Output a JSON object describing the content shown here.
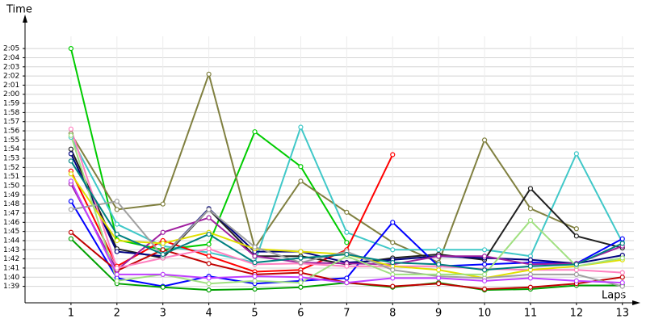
{
  "chart_data": {
    "type": "line",
    "title_y": "Time",
    "title_x": "Laps",
    "x": [
      1,
      2,
      3,
      4,
      5,
      6,
      7,
      8,
      9,
      10,
      11,
      12,
      13
    ],
    "xlim": [
      0,
      13.25
    ],
    "xticks": [
      1,
      2,
      3,
      4,
      5,
      6,
      7,
      8,
      9,
      10,
      11,
      12,
      13
    ],
    "ylim": [
      97.2,
      128.1
    ],
    "yticks": [
      {
        "value": 99,
        "label": "1:39"
      },
      {
        "value": 100,
        "label": "1:40"
      },
      {
        "value": 101,
        "label": "1:41"
      },
      {
        "value": 102,
        "label": "1:42"
      },
      {
        "value": 103,
        "label": "1:43"
      },
      {
        "value": 104,
        "label": "1:44"
      },
      {
        "value": 105,
        "label": "1:45"
      },
      {
        "value": 106,
        "label": "1:46"
      },
      {
        "value": 107,
        "label": "1:47"
      },
      {
        "value": 108,
        "label": "1:48"
      },
      {
        "value": 109,
        "label": "1:49"
      },
      {
        "value": 110,
        "label": "1:50"
      },
      {
        "value": 111,
        "label": "1:51"
      },
      {
        "value": 112,
        "label": "1:52"
      },
      {
        "value": 113,
        "label": "1:53"
      },
      {
        "value": 114,
        "label": "1:54"
      },
      {
        "value": 115,
        "label": "1:55"
      },
      {
        "value": 116,
        "label": "1:56"
      },
      {
        "value": 117,
        "label": "1:57"
      },
      {
        "value": 118,
        "label": "1:58"
      },
      {
        "value": 119,
        "label": "1:59"
      },
      {
        "value": 120,
        "label": "2:00"
      },
      {
        "value": 121,
        "label": "2:01"
      },
      {
        "value": 122,
        "label": "2:02"
      },
      {
        "value": 123,
        "label": "2:03"
      },
      {
        "value": 124,
        "label": "2:04"
      },
      {
        "value": 125,
        "label": "2:05"
      }
    ],
    "grid": true,
    "series": [
      {
        "color": "#00cc00",
        "values": [
          125,
          104.1,
          103,
          103.6,
          115.9,
          112.1,
          103.8,
          null,
          null,
          null,
          null,
          null,
          null
        ]
      },
      {
        "color": "#808040",
        "values": [
          115.7,
          107.4,
          108,
          122.2,
          103.2,
          110.5,
          107.1,
          103.8,
          101.6,
          115,
          107.5,
          105.3,
          null
        ]
      },
      {
        "color": "#40c8c8",
        "values": [
          115.3,
          105.8,
          103.4,
          102.7,
          101.6,
          116.4,
          104.9,
          103,
          103,
          103,
          102.3,
          113.5,
          103.8
        ]
      },
      {
        "color": "#ff0000",
        "values": [
          111.6,
          101.2,
          104,
          102.3,
          100.6,
          100.8,
          103,
          113.4,
          null,
          null,
          null,
          null,
          null
        ]
      },
      {
        "color": "#202020",
        "values": [
          114,
          103.1,
          102.1,
          107.4,
          102.3,
          102.3,
          101.4,
          102.1,
          102.5,
          101.9,
          109.7,
          104.5,
          103.2
        ]
      },
      {
        "color": "#0000ff",
        "values": [
          108.3,
          99.9,
          99,
          100.1,
          99.3,
          99.6,
          99.9,
          106,
          101.2,
          101.4,
          101.6,
          101.5,
          104.2
        ]
      },
      {
        "color": "#000080",
        "values": [
          113.5,
          102.8,
          102.3,
          107.5,
          102.8,
          102.8,
          101.6,
          101.9,
          102.3,
          102.1,
          101.9,
          101.5,
          102.4
        ]
      },
      {
        "color": "#00a000",
        "values": [
          104.2,
          99.3,
          98.9,
          98.6,
          98.7,
          98.9,
          99.4,
          98.9,
          99.4,
          98.6,
          98.7,
          99.1,
          99.1
        ]
      },
      {
        "color": "#c00000",
        "values": [
          104.9,
          100.7,
          103,
          101.5,
          100.3,
          100.5,
          99.4,
          99,
          99.3,
          98.7,
          98.9,
          99.3,
          100
        ]
      },
      {
        "color": "#a020a0",
        "values": [
          110.2,
          100.8,
          104.9,
          106.5,
          102.3,
          101.6,
          101.5,
          101.4,
          102.3,
          102.3,
          101.4,
          101.5,
          103.4
        ]
      },
      {
        "color": "#ff80c0",
        "values": [
          116.2,
          101,
          102.1,
          103.1,
          101.4,
          101.5,
          101.2,
          101.2,
          101.2,
          100.9,
          100.8,
          100.8,
          100.5
        ]
      },
      {
        "color": "#e0e000",
        "values": [
          111.3,
          104,
          103.7,
          104.9,
          103.1,
          102.8,
          102.5,
          101.2,
          100.8,
          99.9,
          100.8,
          101.2,
          101.9
        ]
      },
      {
        "color": "#a0a0a0",
        "values": [
          107.4,
          108.3,
          102.3,
          107.4,
          103.3,
          101.6,
          102.8,
          100.8,
          100.1,
          99.9,
          100.3,
          100.3,
          99
        ]
      },
      {
        "color": "#a0e080",
        "values": [
          115.5,
          99.6,
          100.3,
          99.3,
          99.6,
          99.4,
          102.3,
          100.3,
          100.3,
          100.3,
          106.2,
          101.2,
          102.1
        ]
      },
      {
        "color": "#008080",
        "values": [
          112.7,
          104.7,
          102.5,
          104.7,
          101.6,
          102.1,
          102.5,
          101.6,
          101.4,
          100.8,
          101.2,
          101.4,
          103.7
        ]
      },
      {
        "color": "#c040ff",
        "values": [
          110.5,
          100.3,
          100.3,
          99.9,
          100.1,
          100,
          99.4,
          99.9,
          99.9,
          99.6,
          99.9,
          99.6,
          99.4
        ]
      }
    ]
  }
}
